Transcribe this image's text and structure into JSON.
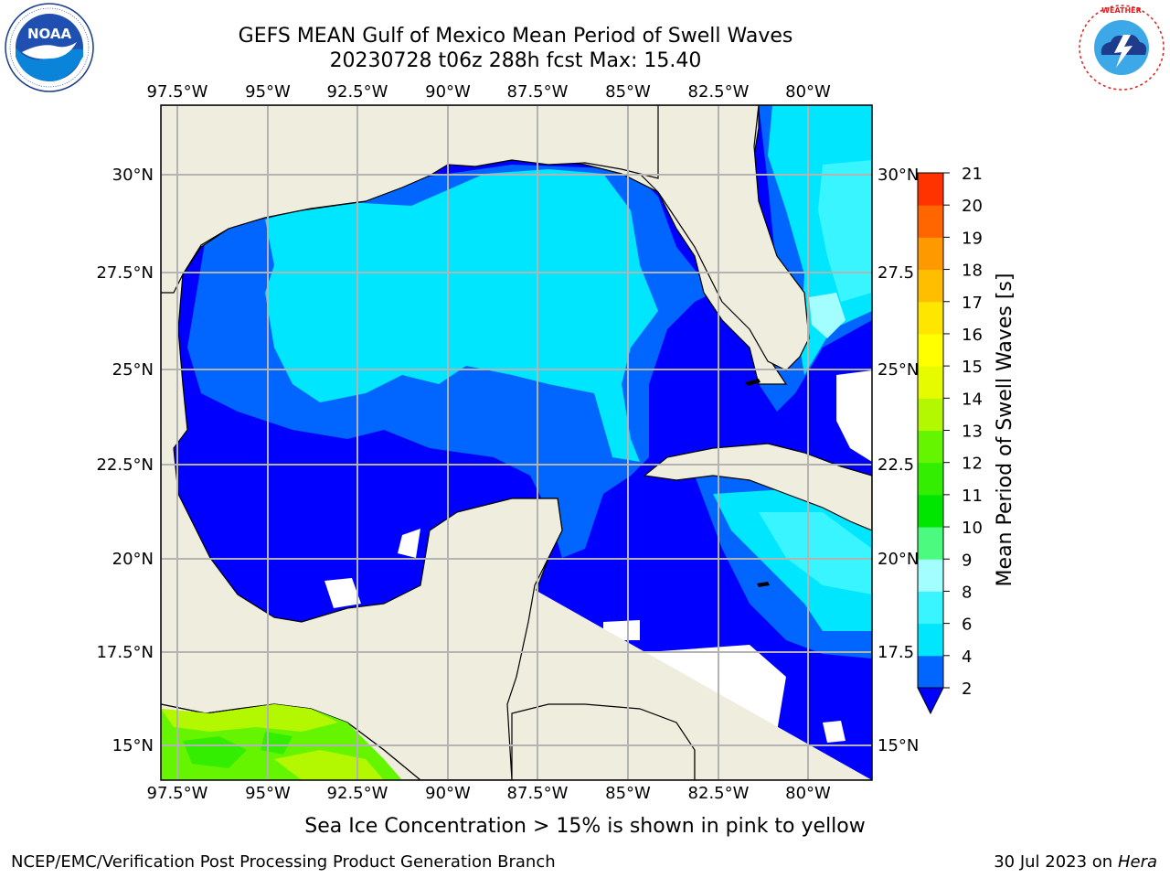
{
  "title_line1": "GEFS MEAN Gulf of Mexico Mean Period of Swell Waves",
  "title_line2": "20230728 t06z 288h fcst   Max: 15.40",
  "logos": {
    "left": "noaa-logo",
    "right": "national-weather-service-logo"
  },
  "map": {
    "lon_range": [
      -98.0,
      -78.3
    ],
    "lat_range": [
      14.0,
      31.8
    ],
    "lon_ticks": [
      "97.5°W",
      "95°W",
      "92.5°W",
      "90°W",
      "87.5°W",
      "85°W",
      "82.5°W",
      "80°W"
    ],
    "lat_ticks_left": [
      "30°N",
      "27.5°N",
      "25°N",
      "22.5°N",
      "20°N",
      "17.5°N",
      "15°N"
    ],
    "lat_ticks_right": [
      "30°N",
      "27.5",
      "25°N",
      "22.5",
      "20°N",
      "17.5",
      "15°N"
    ],
    "grid": true,
    "colors": {
      "land": "#efedde",
      "no_data": "#ffffff",
      "grid": "#b3b3b3",
      "coast": "#000000"
    }
  },
  "colorbar": {
    "label": "Mean Period of Swell Waves [s]",
    "ticks": [
      "2",
      "4",
      "6",
      "8",
      "9",
      "10",
      "11",
      "12",
      "13",
      "14",
      "15",
      "16",
      "17",
      "18",
      "19",
      "20",
      "21"
    ],
    "colors": [
      "#0066ff",
      "#00e6ff",
      "#38f5ff",
      "#a3ffff",
      "#4dfa80",
      "#00e600",
      "#33ee00",
      "#66f500",
      "#b3f700",
      "#e6fa00",
      "#ffff00",
      "#ffe600",
      "#ffbf00",
      "#ff9900",
      "#ff6600",
      "#ff3300"
    ],
    "extend_color": "#0000ff"
  },
  "ice_note": "Sea Ice Concentration > 15% is shown in pink to yellow",
  "credit": "NCEP/EMC/Verification Post Processing Product Generation Branch",
  "date_text": "30 Jul 2023 on",
  "date_host": "Hera"
}
